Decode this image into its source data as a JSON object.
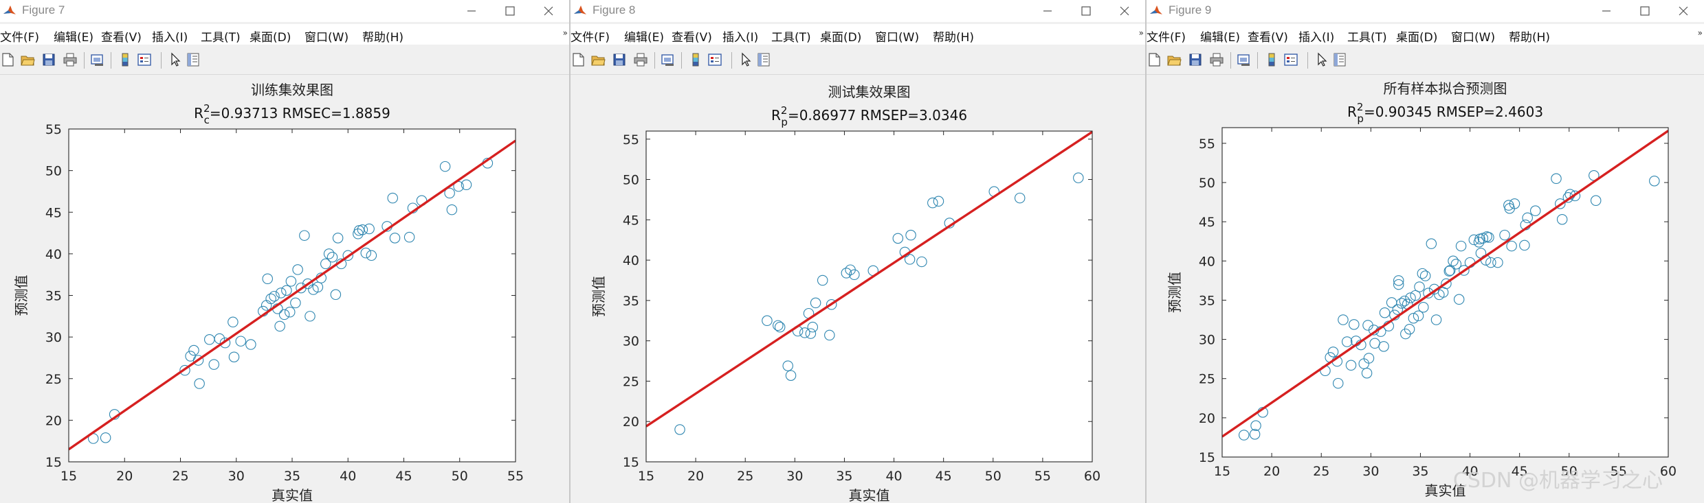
{
  "menu_items": [
    "文件(F)",
    "编辑(E)",
    "查看(V)",
    "插入(I)",
    "工具(T)",
    "桌面(D)",
    "窗口(W)",
    "帮助(H)"
  ],
  "menu_overflow": "»",
  "toolbar_icons": [
    "new-file-icon",
    "open-folder-icon",
    "save-icon",
    "print-icon",
    "print-preview-icon",
    "colorbar-icon",
    "legend-icon",
    "pointer-icon",
    "property-inspector-icon"
  ],
  "window_controls": [
    "minimize-icon",
    "maximize-icon",
    "close-icon"
  ],
  "colors": {
    "marker": "#2e86b0",
    "fit_line": "#d62020",
    "axes_bg": "#ffffff",
    "figure_bg": "#f0f0f0"
  },
  "watermark": "CSDN @机器学习之心",
  "figures": [
    {
      "window_title": "Figure 7",
      "chart_data": {
        "type": "scatter",
        "title": "训练集效果图",
        "subtitle": {
          "base": "R",
          "sup": "2",
          "sub": "c",
          "rest": "=0.93713  RMSEC=1.8859"
        },
        "xlabel": "真实值",
        "ylabel": "预测值",
        "xlim": [
          15,
          55
        ],
        "ylim": [
          15,
          55
        ],
        "xticks": [
          15,
          20,
          25,
          30,
          35,
          40,
          45,
          50,
          55
        ],
        "yticks": [
          15,
          20,
          25,
          30,
          35,
          40,
          45,
          50,
          55
        ],
        "grid": false,
        "legend": "none",
        "fit_line": {
          "x": [
            15,
            55
          ],
          "y": [
            16.5,
            53.6
          ]
        },
        "points": [
          [
            17.2,
            17.8
          ],
          [
            18.3,
            17.9
          ],
          [
            19.1,
            20.7
          ],
          [
            25.4,
            26.0
          ],
          [
            25.9,
            27.7
          ],
          [
            26.2,
            28.4
          ],
          [
            26.6,
            27.2
          ],
          [
            26.7,
            24.4
          ],
          [
            27.6,
            29.7
          ],
          [
            28.0,
            26.7
          ],
          [
            28.5,
            29.8
          ],
          [
            29.0,
            29.3
          ],
          [
            29.7,
            31.8
          ],
          [
            29.8,
            27.6
          ],
          [
            30.4,
            29.5
          ],
          [
            31.3,
            29.1
          ],
          [
            32.4,
            33.1
          ],
          [
            32.7,
            33.8
          ],
          [
            32.8,
            37.0
          ],
          [
            33.1,
            34.6
          ],
          [
            33.4,
            34.9
          ],
          [
            33.7,
            33.4
          ],
          [
            33.9,
            31.3
          ],
          [
            34.0,
            35.3
          ],
          [
            34.3,
            32.7
          ],
          [
            34.5,
            35.6
          ],
          [
            34.8,
            33.0
          ],
          [
            34.9,
            36.7
          ],
          [
            35.3,
            34.1
          ],
          [
            35.5,
            38.1
          ],
          [
            35.8,
            35.9
          ],
          [
            36.1,
            42.2
          ],
          [
            36.4,
            36.4
          ],
          [
            36.6,
            32.5
          ],
          [
            36.9,
            35.7
          ],
          [
            37.3,
            36.0
          ],
          [
            37.6,
            37.1
          ],
          [
            38.0,
            38.8
          ],
          [
            38.3,
            40.0
          ],
          [
            38.6,
            39.6
          ],
          [
            38.9,
            35.1
          ],
          [
            39.1,
            41.9
          ],
          [
            39.4,
            38.8
          ],
          [
            40.0,
            39.8
          ],
          [
            40.9,
            42.4
          ],
          [
            41.0,
            42.8
          ],
          [
            41.3,
            42.9
          ],
          [
            41.6,
            40.1
          ],
          [
            41.9,
            43.0
          ],
          [
            42.1,
            39.8
          ],
          [
            43.5,
            43.3
          ],
          [
            44.0,
            46.7
          ],
          [
            44.2,
            41.9
          ],
          [
            45.5,
            42.0
          ],
          [
            45.8,
            45.5
          ],
          [
            46.6,
            46.4
          ],
          [
            48.7,
            50.5
          ],
          [
            49.1,
            47.3
          ],
          [
            49.3,
            45.3
          ],
          [
            49.9,
            48.1
          ],
          [
            50.6,
            48.3
          ],
          [
            52.5,
            50.9
          ]
        ]
      }
    },
    {
      "window_title": "Figure 8",
      "chart_data": {
        "type": "scatter",
        "title": "测试集效果图",
        "subtitle": {
          "base": "R",
          "sup": "2",
          "sub": "p",
          "rest": "=0.86977  RMSEP=3.0346"
        },
        "xlabel": "真实值",
        "ylabel": "预测值",
        "xlim": [
          15,
          60
        ],
        "ylim": [
          15,
          56
        ],
        "xticks": [
          15,
          20,
          25,
          30,
          35,
          40,
          45,
          50,
          55,
          60
        ],
        "yticks": [
          15,
          20,
          25,
          30,
          35,
          40,
          45,
          50,
          55
        ],
        "grid": false,
        "legend": "none",
        "fit_line": {
          "x": [
            15,
            60
          ],
          "y": [
            19.4,
            55.9
          ]
        },
        "points": [
          [
            18.4,
            19.0
          ],
          [
            27.2,
            32.5
          ],
          [
            28.3,
            31.9
          ],
          [
            28.5,
            31.7
          ],
          [
            29.3,
            26.9
          ],
          [
            29.6,
            25.7
          ],
          [
            30.3,
            31.2
          ],
          [
            31.0,
            31.0
          ],
          [
            31.4,
            33.4
          ],
          [
            31.6,
            30.9
          ],
          [
            31.8,
            31.7
          ],
          [
            32.1,
            34.7
          ],
          [
            32.8,
            37.5
          ],
          [
            33.5,
            30.7
          ],
          [
            33.7,
            34.5
          ],
          [
            35.2,
            38.4
          ],
          [
            35.6,
            38.8
          ],
          [
            36.0,
            38.2
          ],
          [
            37.9,
            38.7
          ],
          [
            40.4,
            42.7
          ],
          [
            41.1,
            41.0
          ],
          [
            41.6,
            40.1
          ],
          [
            41.7,
            43.1
          ],
          [
            42.8,
            39.8
          ],
          [
            43.9,
            47.1
          ],
          [
            44.5,
            47.3
          ],
          [
            45.6,
            44.6
          ],
          [
            50.1,
            48.5
          ],
          [
            52.7,
            47.7
          ],
          [
            58.6,
            50.2
          ]
        ]
      }
    },
    {
      "window_title": "Figure 9",
      "chart_data": {
        "type": "scatter",
        "title": "所有样本拟合预测图",
        "subtitle": {
          "base": "R",
          "sup": "2",
          "sub": "p",
          "rest": "=0.90345  RMSEP=2.4603"
        },
        "xlabel": "真实值",
        "ylabel": "预测值",
        "xlim": [
          15,
          60
        ],
        "ylim": [
          15,
          57
        ],
        "xticks": [
          15,
          20,
          25,
          30,
          35,
          40,
          45,
          50,
          55,
          60
        ],
        "yticks": [
          15,
          20,
          25,
          30,
          35,
          40,
          45,
          50,
          55
        ],
        "grid": false,
        "legend": "none",
        "fit_line": {
          "x": [
            15,
            60
          ],
          "y": [
            17.6,
            56.6
          ]
        },
        "points": [
          [
            17.2,
            17.8
          ],
          [
            18.3,
            17.9
          ],
          [
            18.4,
            19.0
          ],
          [
            19.1,
            20.7
          ],
          [
            25.4,
            26.0
          ],
          [
            25.9,
            27.7
          ],
          [
            26.2,
            28.4
          ],
          [
            26.6,
            27.2
          ],
          [
            26.7,
            24.4
          ],
          [
            27.2,
            32.5
          ],
          [
            27.6,
            29.7
          ],
          [
            28.0,
            26.7
          ],
          [
            28.3,
            31.9
          ],
          [
            28.5,
            29.8
          ],
          [
            29.0,
            29.3
          ],
          [
            29.3,
            26.9
          ],
          [
            29.6,
            25.7
          ],
          [
            29.7,
            31.8
          ],
          [
            29.8,
            27.6
          ],
          [
            30.3,
            31.2
          ],
          [
            30.4,
            29.5
          ],
          [
            31.0,
            31.0
          ],
          [
            31.3,
            29.1
          ],
          [
            31.4,
            33.4
          ],
          [
            31.8,
            31.7
          ],
          [
            32.1,
            34.7
          ],
          [
            32.4,
            33.1
          ],
          [
            32.7,
            33.8
          ],
          [
            32.8,
            37.0
          ],
          [
            32.8,
            37.5
          ],
          [
            33.1,
            34.6
          ],
          [
            33.4,
            34.9
          ],
          [
            33.5,
            30.7
          ],
          [
            33.7,
            34.5
          ],
          [
            33.9,
            31.3
          ],
          [
            34.0,
            35.3
          ],
          [
            34.3,
            32.7
          ],
          [
            34.5,
            35.6
          ],
          [
            34.8,
            33.0
          ],
          [
            34.9,
            36.7
          ],
          [
            35.2,
            38.4
          ],
          [
            35.3,
            34.1
          ],
          [
            35.5,
            38.1
          ],
          [
            35.8,
            35.9
          ],
          [
            36.1,
            42.2
          ],
          [
            36.4,
            36.4
          ],
          [
            36.6,
            32.5
          ],
          [
            36.9,
            35.7
          ],
          [
            37.3,
            36.0
          ],
          [
            37.6,
            37.1
          ],
          [
            37.9,
            38.7
          ],
          [
            38.0,
            38.8
          ],
          [
            38.3,
            40.0
          ],
          [
            38.6,
            39.6
          ],
          [
            38.9,
            35.1
          ],
          [
            39.1,
            41.9
          ],
          [
            39.4,
            38.8
          ],
          [
            40.0,
            39.8
          ],
          [
            40.4,
            42.7
          ],
          [
            40.9,
            42.4
          ],
          [
            41.0,
            42.8
          ],
          [
            41.1,
            41.0
          ],
          [
            41.3,
            42.9
          ],
          [
            41.6,
            40.1
          ],
          [
            41.7,
            43.1
          ],
          [
            41.9,
            43.0
          ],
          [
            42.1,
            39.8
          ],
          [
            42.8,
            39.8
          ],
          [
            43.5,
            43.3
          ],
          [
            43.9,
            47.1
          ],
          [
            44.0,
            46.7
          ],
          [
            44.2,
            41.9
          ],
          [
            44.5,
            47.3
          ],
          [
            45.5,
            42.0
          ],
          [
            45.6,
            44.6
          ],
          [
            45.8,
            45.5
          ],
          [
            46.6,
            46.4
          ],
          [
            48.7,
            50.5
          ],
          [
            49.1,
            47.3
          ],
          [
            49.3,
            45.3
          ],
          [
            49.9,
            48.1
          ],
          [
            50.1,
            48.5
          ],
          [
            50.6,
            48.3
          ],
          [
            52.5,
            50.9
          ],
          [
            52.7,
            47.7
          ],
          [
            58.6,
            50.2
          ]
        ]
      }
    }
  ]
}
